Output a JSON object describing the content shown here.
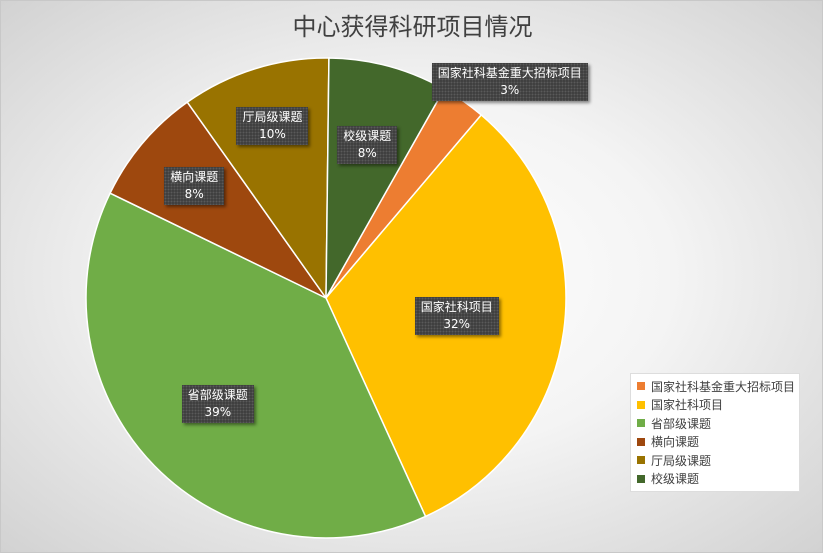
{
  "chart_data": {
    "type": "pie",
    "title": "中心获得科研项目情况",
    "slices": [
      {
        "label": "国家社科基金重大招标项目",
        "percent_label": "3%",
        "value": 3,
        "color": "#ED7D31"
      },
      {
        "label": "国家社科项目",
        "percent_label": "32%",
        "value": 32,
        "color": "#FFC000"
      },
      {
        "label": "省部级课题",
        "percent_label": "39%",
        "value": 39,
        "color": "#70AD47"
      },
      {
        "label": "横向课题",
        "percent_label": "8%",
        "value": 8,
        "color": "#9E480E"
      },
      {
        "label": "厅局级课题",
        "percent_label": "10%",
        "value": 10,
        "color": "#997300"
      },
      {
        "label": "校级课题",
        "percent_label": "8%",
        "value": 8,
        "color": "#43682B"
      }
    ],
    "legend": {
      "position": "bottom-right",
      "entries": [
        "国家社科基金重大招标项目",
        "国家社科项目",
        "省部级课题",
        "横向课题",
        "厅局级课题",
        "校级课题"
      ]
    }
  }
}
